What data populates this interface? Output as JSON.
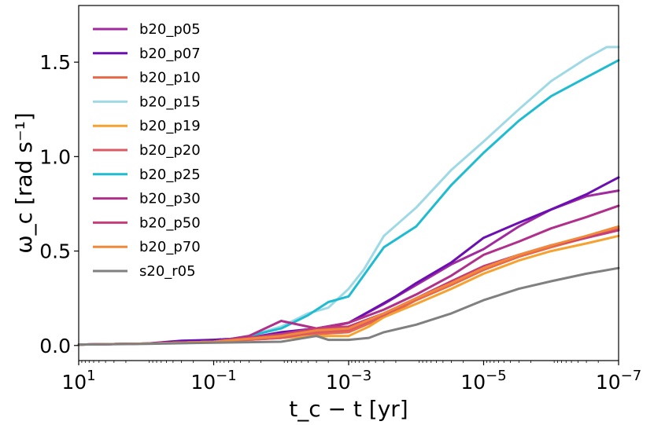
{
  "chart_data": {
    "type": "line",
    "x_scale": "log",
    "x_reversed": true,
    "xlabel": "t_c − t [yr]",
    "ylabel": "ω_c [rad s⁻¹]",
    "xlim": [
      10,
      1e-07
    ],
    "ylim": [
      -0.08,
      1.8
    ],
    "x_ticks": [
      {
        "value": 10,
        "base": "10",
        "exp": "1"
      },
      {
        "value": 0.1,
        "base": "10",
        "exp": "−1"
      },
      {
        "value": 0.001,
        "base": "10",
        "exp": "−3"
      },
      {
        "value": 1e-05,
        "base": "10",
        "exp": "−5"
      },
      {
        "value": 1e-07,
        "base": "10",
        "exp": "−7"
      }
    ],
    "y_ticks": [
      {
        "value": 0.0,
        "label": "0.0"
      },
      {
        "value": 0.5,
        "label": "0.5"
      },
      {
        "value": 1.0,
        "label": "1.0"
      },
      {
        "value": 1.5,
        "label": "1.5"
      }
    ],
    "legend_position": "top-left",
    "series": [
      {
        "name": "b20_p05",
        "color": "#a12b9e",
        "points": [
          [
            10,
            0.005
          ],
          [
            1,
            0.01
          ],
          [
            0.3,
            0.02
          ],
          [
            0.03,
            0.04
          ],
          [
            0.01,
            0.06
          ],
          [
            0.003,
            0.08
          ],
          [
            0.001,
            0.12
          ],
          [
            0.0003,
            0.22
          ],
          [
            0.0001,
            0.32
          ],
          [
            3e-05,
            0.43
          ],
          [
            1e-05,
            0.51
          ],
          [
            3e-06,
            0.63
          ],
          [
            1e-06,
            0.72
          ],
          [
            3e-07,
            0.79
          ],
          [
            1e-07,
            0.82
          ]
        ]
      },
      {
        "name": "b20_p07",
        "color": "#6b0fb3",
        "points": [
          [
            10,
            0.005
          ],
          [
            1,
            0.01
          ],
          [
            0.3,
            0.025
          ],
          [
            0.1,
            0.03
          ],
          [
            0.03,
            0.04
          ],
          [
            0.01,
            0.07
          ],
          [
            0.003,
            0.09
          ],
          [
            0.001,
            0.12
          ],
          [
            0.0005,
            0.18
          ],
          [
            0.0002,
            0.26
          ],
          [
            0.0001,
            0.33
          ],
          [
            3e-05,
            0.44
          ],
          [
            1e-05,
            0.57
          ],
          [
            3e-06,
            0.65
          ],
          [
            1e-06,
            0.72
          ],
          [
            3e-07,
            0.8
          ],
          [
            1e-07,
            0.89
          ]
        ]
      },
      {
        "name": "b20_p10",
        "color": "#e8684a",
        "points": [
          [
            10,
            0.005
          ],
          [
            1,
            0.01
          ],
          [
            0.1,
            0.02
          ],
          [
            0.01,
            0.04
          ],
          [
            0.003,
            0.06
          ],
          [
            0.001,
            0.07
          ],
          [
            0.0003,
            0.15
          ],
          [
            0.0001,
            0.24
          ],
          [
            3e-05,
            0.32
          ],
          [
            1e-05,
            0.4
          ],
          [
            3e-06,
            0.47
          ],
          [
            1e-06,
            0.52
          ],
          [
            3e-07,
            0.57
          ],
          [
            1e-07,
            0.62
          ]
        ]
      },
      {
        "name": "b20_p15",
        "color": "#9fd9e5",
        "points": [
          [
            10,
            0.005
          ],
          [
            1,
            0.01
          ],
          [
            0.1,
            0.02
          ],
          [
            0.03,
            0.05
          ],
          [
            0.01,
            0.1
          ],
          [
            0.004,
            0.17
          ],
          [
            0.002,
            0.2
          ],
          [
            0.001,
            0.3
          ],
          [
            0.0006,
            0.4
          ],
          [
            0.0003,
            0.58
          ],
          [
            0.0001,
            0.73
          ],
          [
            3e-05,
            0.93
          ],
          [
            1e-05,
            1.08
          ],
          [
            3e-06,
            1.25
          ],
          [
            1e-06,
            1.4
          ],
          [
            3e-07,
            1.52
          ],
          [
            1.5e-07,
            1.58
          ],
          [
            1e-07,
            1.58
          ]
        ]
      },
      {
        "name": "b20_p19",
        "color": "#f5a230",
        "points": [
          [
            10,
            0.005
          ],
          [
            1,
            0.01
          ],
          [
            0.1,
            0.02
          ],
          [
            0.01,
            0.04
          ],
          [
            0.003,
            0.05
          ],
          [
            0.001,
            0.05
          ],
          [
            0.0005,
            0.1
          ],
          [
            0.0003,
            0.15
          ],
          [
            0.0001,
            0.22
          ],
          [
            3e-05,
            0.3
          ],
          [
            1e-05,
            0.38
          ],
          [
            3e-06,
            0.45
          ],
          [
            1e-06,
            0.5
          ],
          [
            3e-07,
            0.54
          ],
          [
            1e-07,
            0.58
          ]
        ]
      },
      {
        "name": "b20_p20",
        "color": "#dc5a64",
        "points": [
          [
            10,
            0.005
          ],
          [
            1,
            0.01
          ],
          [
            0.1,
            0.02
          ],
          [
            0.01,
            0.04
          ],
          [
            0.003,
            0.07
          ],
          [
            0.001,
            0.08
          ],
          [
            0.0003,
            0.16
          ],
          [
            0.0001,
            0.25
          ],
          [
            3e-05,
            0.33
          ],
          [
            1e-05,
            0.41
          ],
          [
            3e-06,
            0.48
          ],
          [
            1e-06,
            0.53
          ],
          [
            3e-07,
            0.57
          ],
          [
            1e-07,
            0.61
          ]
        ]
      },
      {
        "name": "b20_p25",
        "color": "#1fbbd0",
        "points": [
          [
            10,
            0.005
          ],
          [
            1,
            0.01
          ],
          [
            0.1,
            0.02
          ],
          [
            0.03,
            0.05
          ],
          [
            0.01,
            0.09
          ],
          [
            0.004,
            0.16
          ],
          [
            0.002,
            0.23
          ],
          [
            0.001,
            0.26
          ],
          [
            0.0006,
            0.37
          ],
          [
            0.0003,
            0.52
          ],
          [
            0.0001,
            0.63
          ],
          [
            3e-05,
            0.85
          ],
          [
            1e-05,
            1.02
          ],
          [
            3e-06,
            1.19
          ],
          [
            1e-06,
            1.32
          ],
          [
            3e-07,
            1.42
          ],
          [
            1e-07,
            1.51
          ]
        ]
      },
      {
        "name": "b20_p30",
        "color": "#b02f8a",
        "points": [
          [
            10,
            0.005
          ],
          [
            1,
            0.01
          ],
          [
            0.1,
            0.02
          ],
          [
            0.03,
            0.05
          ],
          [
            0.01,
            0.13
          ],
          [
            0.003,
            0.09
          ],
          [
            0.001,
            0.12
          ],
          [
            0.0003,
            0.19
          ],
          [
            0.0001,
            0.27
          ],
          [
            3e-05,
            0.37
          ],
          [
            1e-05,
            0.48
          ],
          [
            3e-06,
            0.55
          ],
          [
            1e-06,
            0.62
          ],
          [
            3e-07,
            0.68
          ],
          [
            1e-07,
            0.74
          ]
        ]
      },
      {
        "name": "b20_p50",
        "color": "#c63e78",
        "points": [
          [
            10,
            0.005
          ],
          [
            1,
            0.01
          ],
          [
            0.1,
            0.02
          ],
          [
            0.01,
            0.06
          ],
          [
            0.003,
            0.09
          ],
          [
            0.001,
            0.1
          ],
          [
            0.0003,
            0.17
          ],
          [
            0.0001,
            0.25
          ],
          [
            3e-05,
            0.34
          ],
          [
            1e-05,
            0.42
          ],
          [
            3e-06,
            0.48
          ],
          [
            1e-06,
            0.53
          ],
          [
            3e-07,
            0.57
          ],
          [
            1e-07,
            0.61
          ]
        ]
      },
      {
        "name": "b20_p70",
        "color": "#f08a3a",
        "points": [
          [
            10,
            0.005
          ],
          [
            1,
            0.01
          ],
          [
            0.1,
            0.02
          ],
          [
            0.01,
            0.05
          ],
          [
            0.003,
            0.08
          ],
          [
            0.001,
            0.09
          ],
          [
            0.0003,
            0.17
          ],
          [
            0.0001,
            0.25
          ],
          [
            3e-05,
            0.33
          ],
          [
            1e-05,
            0.41
          ],
          [
            3e-06,
            0.48
          ],
          [
            1e-06,
            0.53
          ],
          [
            3e-07,
            0.58
          ],
          [
            1e-07,
            0.63
          ]
        ]
      },
      {
        "name": "s20_r05",
        "color": "#808080",
        "points": [
          [
            10,
            0.005
          ],
          [
            1,
            0.008
          ],
          [
            0.1,
            0.015
          ],
          [
            0.01,
            0.02
          ],
          [
            0.003,
            0.05
          ],
          [
            0.002,
            0.03
          ],
          [
            0.001,
            0.03
          ],
          [
            0.0005,
            0.04
          ],
          [
            0.0003,
            0.07
          ],
          [
            0.0001,
            0.11
          ],
          [
            3e-05,
            0.17
          ],
          [
            1e-05,
            0.24
          ],
          [
            3e-06,
            0.3
          ],
          [
            1e-06,
            0.34
          ],
          [
            3e-07,
            0.38
          ],
          [
            1e-07,
            0.41
          ]
        ]
      }
    ]
  }
}
